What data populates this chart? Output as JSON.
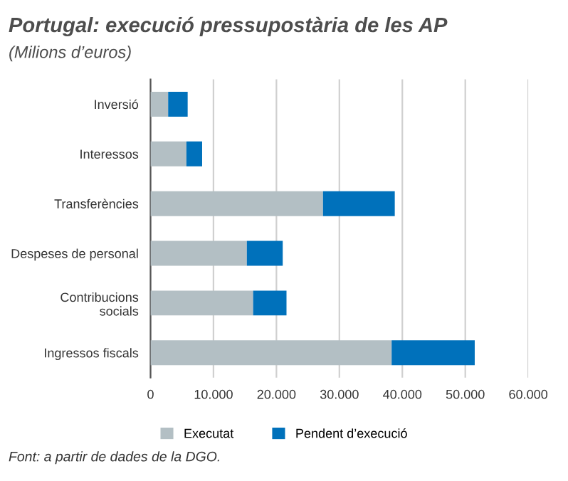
{
  "chart_data": {
    "type": "bar",
    "orientation": "horizontal",
    "stacked": true,
    "title": "Portugal: execució pressupostària de les AP",
    "subtitle": "(Milions d’euros)",
    "categories": [
      "Inversió",
      "Interessos",
      "Transferències",
      "Despeses de personal",
      "Contribucions socials",
      "Ingressos fiscals"
    ],
    "series": [
      {
        "name": "Executat",
        "color": "#b3bfc4",
        "values": [
          2800,
          5700,
          27400,
          15300,
          16300,
          38300
        ]
      },
      {
        "name": "Pendent d’execució",
        "color": "#0071bb",
        "values": [
          3100,
          2500,
          11400,
          5700,
          5300,
          13200
        ]
      }
    ],
    "xlim": [
      0,
      60000
    ],
    "xticks": [
      0,
      {
        "value": 10000,
        "label": "10.000"
      },
      {
        "value": 20000,
        "label": "20.000"
      },
      {
        "value": 30000,
        "label": "30.000"
      },
      {
        "value": 40000,
        "label": "40.000"
      },
      {
        "value": 50000,
        "label": "50.000"
      },
      {
        "value": 60000,
        "label": "60.000"
      }
    ],
    "grid": "x",
    "legend": "bottom",
    "annotations": [
      "Font: a partir de dades de la DGO."
    ]
  }
}
